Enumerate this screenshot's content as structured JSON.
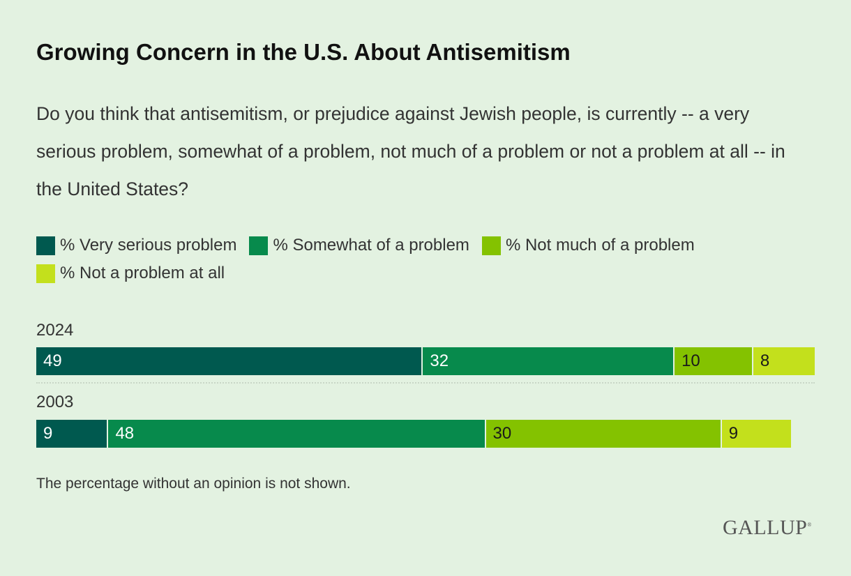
{
  "title": "Growing Concern in the U.S. About Antisemitism",
  "subtitle": "Do you think that antisemitism, or prejudice against Jewish people, is currently -- a very serious problem, somewhat of a problem, not much of a problem or not a problem at all -- in the United States?",
  "note": "The percentage without an opinion is not shown.",
  "logo": "GALLUP",
  "chart_data": {
    "type": "bar",
    "orientation": "horizontal-stacked",
    "categories": [
      "2024",
      "2003"
    ],
    "series": [
      {
        "name": "% Very serious problem",
        "color": "#00594f",
        "label_color": "#ffffff",
        "values": [
          49,
          9
        ]
      },
      {
        "name": "% Somewhat of a problem",
        "color": "#078a4c",
        "label_color": "#ffffff",
        "values": [
          32,
          48
        ]
      },
      {
        "name": "% Not much of a problem",
        "color": "#84c200",
        "label_color": "#1a1a1a",
        "values": [
          10,
          30
        ]
      },
      {
        "name": "% Not a problem at all",
        "color": "#c3e01c",
        "label_color": "#1a1a1a",
        "values": [
          8,
          9
        ]
      }
    ],
    "xlim": [
      0,
      99
    ],
    "legend": "top"
  }
}
